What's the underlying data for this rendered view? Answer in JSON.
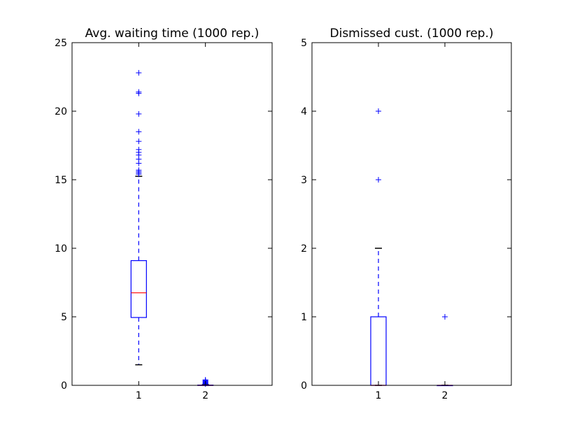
{
  "chart_data": [
    {
      "type": "box",
      "title": "Avg. waiting time (1000 rep.)",
      "xlabel": "",
      "ylabel": "",
      "categories": [
        "1",
        "2"
      ],
      "ylim": [
        0,
        25
      ],
      "yticks": [
        0,
        5,
        10,
        15,
        20,
        25
      ],
      "grid": false,
      "boxes": [
        {
          "category": "1",
          "whislo": 1.5,
          "q1": 4.95,
          "median": 6.75,
          "q3": 9.1,
          "whishi": 15.25,
          "fliers": [
            15.4,
            15.5,
            15.6,
            15.7,
            16.2,
            16.5,
            16.8,
            17.0,
            17.2,
            17.8,
            18.5,
            19.8,
            21.3,
            21.4,
            22.8
          ]
        },
        {
          "category": "2",
          "whislo": 0.0,
          "q1": 0.0,
          "median": 0.0,
          "q3": 0.02,
          "whishi": 0.05,
          "fliers": [
            0.1,
            0.15,
            0.2,
            0.25,
            0.3,
            0.35,
            0.4
          ]
        }
      ]
    },
    {
      "type": "box",
      "title": "Dismissed cust. (1000 rep.)",
      "xlabel": "",
      "ylabel": "",
      "categories": [
        "1",
        "2"
      ],
      "ylim": [
        0,
        5
      ],
      "yticks": [
        0,
        1,
        2,
        3,
        4,
        5
      ],
      "grid": false,
      "boxes": [
        {
          "category": "1",
          "whislo": 0,
          "q1": 0,
          "median": 0,
          "q3": 1,
          "whishi": 2,
          "fliers": [
            3,
            4
          ]
        },
        {
          "category": "2",
          "whislo": 0,
          "q1": 0,
          "median": 0,
          "q3": 0,
          "whishi": 0,
          "fliers": [
            1
          ]
        }
      ]
    }
  ]
}
